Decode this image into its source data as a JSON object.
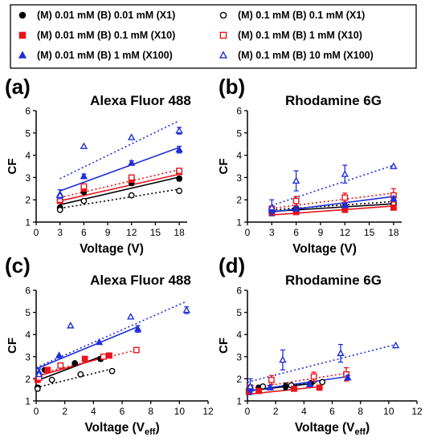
{
  "legend": {
    "entries": [
      {
        "text": "(M) 0.01 mM  (B) 0.01 mM  (X1)",
        "color": "#000000",
        "marker": "circle",
        "filled": true
      },
      {
        "text": "(M) 0.1 mM  (B) 0.1 mM  (X1)",
        "color": "#000000",
        "marker": "circle",
        "filled": false
      },
      {
        "text": "(M) 0.01 mM  (B) 0.1 mM  (X10)",
        "color": "#e8141c",
        "marker": "square",
        "filled": true
      },
      {
        "text": "(M) 0.1 mM  (B) 1 mM     (X10)",
        "color": "#e8141c",
        "marker": "square",
        "filled": false
      },
      {
        "text": "(M) 0.01 mM  (B) 1 mM     (X100)",
        "color": "#1f2fd8",
        "marker": "triangle",
        "filled": true
      },
      {
        "text": "(M) 0.1 mM  (B) 10 mM  (X100)",
        "color": "#1f2fd8",
        "marker": "triangle",
        "filled": false
      }
    ]
  },
  "chart_data": [
    {
      "type": "scatter",
      "panel_label": "(a)",
      "title": "Alexa Fluor 488",
      "xlabel": "Voltage (V)",
      "ylabel": "CF",
      "xlim": [
        0,
        19
      ],
      "ylim": [
        1,
        6
      ],
      "xticks": [
        0,
        3,
        6,
        9,
        12,
        15,
        18
      ],
      "yticks": [
        1,
        2,
        3,
        4,
        5,
        6
      ],
      "series": [
        {
          "x": [
            3,
            6,
            12,
            18
          ],
          "y": [
            1.65,
            2.35,
            2.75,
            2.95
          ],
          "err": [
            0.05,
            0.08,
            0.1,
            0.1
          ],
          "fit": [
            [
              3,
              1.78
            ],
            [
              18,
              3.02
            ]
          ],
          "color": "#000000",
          "marker": "circle",
          "filled": true,
          "dotted": false
        },
        {
          "x": [
            3,
            6,
            12,
            18
          ],
          "y": [
            1.55,
            1.95,
            2.2,
            2.4
          ],
          "err": [
            0.05,
            0.05,
            0.05,
            0.05
          ],
          "fit": [
            [
              3,
              1.62
            ],
            [
              18,
              2.48
            ]
          ],
          "color": "#000000",
          "marker": "circle",
          "filled": false,
          "dotted": true
        },
        {
          "x": [
            3,
            6,
            12,
            18
          ],
          "y": [
            1.95,
            2.5,
            2.9,
            3.25
          ],
          "err": [
            0.05,
            0.08,
            0.1,
            0.1
          ],
          "fit": [
            [
              3,
              1.95
            ],
            [
              18,
              3.15
            ]
          ],
          "color": "#e8141c",
          "marker": "square",
          "filled": true,
          "dotted": false
        },
        {
          "x": [
            3,
            6,
            12,
            18
          ],
          "y": [
            2.0,
            2.6,
            3.0,
            3.3
          ],
          "err": [
            0.05,
            0.05,
            0.05,
            0.05
          ],
          "fit": [
            [
              3,
              2.1
            ],
            [
              18,
              3.35
            ]
          ],
          "color": "#e8141c",
          "marker": "square",
          "filled": false,
          "dotted": true
        },
        {
          "x": [
            3,
            6,
            12,
            18
          ],
          "y": [
            2.25,
            3.05,
            3.65,
            4.25
          ],
          "err": [
            0.2,
            0.1,
            0.1,
            0.15
          ],
          "fit": [
            [
              3,
              2.4
            ],
            [
              18,
              4.35
            ]
          ],
          "color": "#1f2fd8",
          "marker": "triangle",
          "filled": true,
          "dotted": false
        },
        {
          "x": [
            3,
            6,
            12,
            18
          ],
          "y": [
            2.2,
            4.4,
            4.8,
            5.1
          ],
          "err": [
            0.05,
            0.05,
            0.05,
            0.15
          ],
          "fit": [
            [
              3,
              2.95
            ],
            [
              18,
              5.55
            ]
          ],
          "color": "#1f2fd8",
          "marker": "triangle",
          "filled": false,
          "dotted": true
        }
      ]
    },
    {
      "type": "scatter",
      "panel_label": "(b)",
      "title": "Rhodamine 6G",
      "xlabel": "Voltage (V)",
      "ylabel": "CF",
      "xlim": [
        0,
        19
      ],
      "ylim": [
        1,
        6
      ],
      "xticks": [
        0,
        3,
        6,
        9,
        12,
        15,
        18
      ],
      "yticks": [
        1,
        2,
        3,
        4,
        5,
        6
      ],
      "series": [
        {
          "x": [
            3,
            6,
            12,
            18
          ],
          "y": [
            1.5,
            1.6,
            1.65,
            1.8
          ],
          "err": [
            0.15,
            0.1,
            0.15,
            0.15
          ],
          "fit": [
            [
              3,
              1.48
            ],
            [
              18,
              1.82
            ]
          ],
          "color": "#000000",
          "marker": "circle",
          "filled": true,
          "dotted": false
        },
        {
          "x": [
            3,
            6,
            12,
            18
          ],
          "y": [
            1.5,
            1.6,
            1.7,
            1.85
          ],
          "err": [
            0.05,
            0.05,
            0.05,
            0.05
          ],
          "fit": [
            [
              3,
              1.55
            ],
            [
              18,
              1.92
            ]
          ],
          "color": "#000000",
          "marker": "circle",
          "filled": false,
          "dotted": true
        },
        {
          "x": [
            3,
            6,
            12,
            18
          ],
          "y": [
            1.4,
            1.45,
            1.55,
            1.65
          ],
          "err": [
            0.1,
            0.1,
            0.1,
            0.1
          ],
          "fit": [
            [
              3,
              1.32
            ],
            [
              18,
              1.72
            ]
          ],
          "color": "#e8141c",
          "marker": "square",
          "filled": true,
          "dotted": false
        },
        {
          "x": [
            3,
            6,
            12,
            18
          ],
          "y": [
            1.6,
            1.95,
            2.1,
            2.2
          ],
          "err": [
            0.1,
            0.2,
            0.2,
            0.3
          ],
          "fit": [
            [
              3,
              1.62
            ],
            [
              18,
              2.3
            ]
          ],
          "color": "#e8141c",
          "marker": "square",
          "filled": false,
          "dotted": true
        },
        {
          "x": [
            3,
            6,
            12,
            18
          ],
          "y": [
            1.55,
            1.6,
            1.75,
            2.05
          ],
          "err": [
            0.15,
            0.1,
            0.1,
            0.1
          ],
          "fit": [
            [
              3,
              1.45
            ],
            [
              18,
              2.15
            ]
          ],
          "color": "#1f2fd8",
          "marker": "triangle",
          "filled": true,
          "dotted": false
        },
        {
          "x": [
            3,
            6,
            12,
            18
          ],
          "y": [
            1.65,
            2.85,
            3.15,
            3.5
          ],
          "err": [
            0.35,
            0.45,
            0.4,
            0.05
          ],
          "fit": [
            [
              3,
              1.75
            ],
            [
              18,
              3.55
            ]
          ],
          "color": "#1f2fd8",
          "marker": "triangle",
          "filled": false,
          "dotted": true
        }
      ]
    },
    {
      "type": "scatter",
      "panel_label": "(c)",
      "title": "Alexa Fluor 488",
      "xlabel": "Voltage (V",
      "xlabel_sub": "eff",
      "xlabel_end": ")",
      "ylabel": "CF",
      "xlim": [
        0,
        12
      ],
      "ylim": [
        1,
        6
      ],
      "xticks": [
        0,
        2,
        4,
        6,
        8,
        10,
        12
      ],
      "yticks": [
        1,
        2,
        3,
        4,
        5,
        6
      ],
      "series": [
        {
          "x": [
            0.1,
            0.6,
            2.7,
            4.5
          ],
          "y": [
            1.6,
            2.4,
            2.7,
            2.9
          ],
          "err": [
            0.1,
            0.05,
            0.05,
            0.1
          ],
          "fit": [
            [
              0,
              1.9
            ],
            [
              4.7,
              3.05
            ]
          ],
          "color": "#000000",
          "marker": "circle",
          "filled": true,
          "dotted": false
        },
        {
          "x": [
            0.1,
            1.1,
            3.1,
            5.3
          ],
          "y": [
            1.55,
            1.95,
            2.2,
            2.35
          ],
          "err": [
            0.05,
            0.05,
            0.05,
            0.05
          ],
          "fit": [
            [
              0,
              1.6
            ],
            [
              5.3,
              2.45
            ]
          ],
          "color": "#000000",
          "marker": "circle",
          "filled": false,
          "dotted": true
        },
        {
          "x": [
            0.1,
            0.8,
            3.4,
            5.1
          ],
          "y": [
            1.95,
            2.4,
            2.9,
            3.05
          ],
          "err": [
            0.05,
            0.05,
            0.05,
            0.05
          ],
          "fit": [
            [
              0,
              2.1
            ],
            [
              5.2,
              3.05
            ]
          ],
          "color": "#e8141c",
          "marker": "square",
          "filled": true,
          "dotted": false
        },
        {
          "x": [
            0.2,
            1.7,
            4.7,
            7.0
          ],
          "y": [
            2.05,
            2.6,
            3.0,
            3.3
          ],
          "err": [
            0.05,
            0.05,
            0.05,
            0.05
          ],
          "fit": [
            [
              0,
              2.2
            ],
            [
              7.0,
              3.3
            ]
          ],
          "color": "#e8141c",
          "marker": "square",
          "filled": false,
          "dotted": true
        },
        {
          "x": [
            0.2,
            1.6,
            4.4,
            7.1
          ],
          "y": [
            2.3,
            3.05,
            3.65,
            4.25
          ],
          "err": [
            0.15,
            0.05,
            0.05,
            0.15
          ],
          "fit": [
            [
              0,
              2.45
            ],
            [
              7.1,
              4.35
            ]
          ],
          "color": "#1f2fd8",
          "marker": "triangle",
          "filled": true,
          "dotted": false
        },
        {
          "x": [
            0.2,
            2.4,
            6.6,
            10.5
          ],
          "y": [
            2.2,
            4.4,
            4.8,
            5.1
          ],
          "err": [
            0.05,
            0.05,
            0.05,
            0.15
          ],
          "fit": [
            [
              0,
              2.5
            ],
            [
              10.5,
              5.5
            ]
          ],
          "color": "#1f2fd8",
          "marker": "triangle",
          "filled": false,
          "dotted": true
        }
      ]
    },
    {
      "type": "scatter",
      "panel_label": "(d)",
      "title": "Rhodamine 6G",
      "xlabel": "Voltage (V",
      "xlabel_sub": "eff",
      "xlabel_end": ")",
      "ylabel": "CF",
      "xlim": [
        0,
        12
      ],
      "ylim": [
        1,
        6
      ],
      "xticks": [
        0,
        2,
        4,
        6,
        8,
        10,
        12
      ],
      "yticks": [
        1,
        2,
        3,
        4,
        5,
        6
      ],
      "series": [
        {
          "x": [
            0.1,
            0.8,
            2.7,
            4.5
          ],
          "y": [
            1.5,
            1.6,
            1.65,
            1.8
          ],
          "err": [
            0.15,
            0.1,
            0.15,
            0.1
          ],
          "fit": [
            [
              0,
              1.45
            ],
            [
              4.8,
              1.8
            ]
          ],
          "color": "#000000",
          "marker": "circle",
          "filled": true,
          "dotted": false
        },
        {
          "x": [
            0.1,
            1.1,
            3.1,
            5.3
          ],
          "y": [
            1.5,
            1.65,
            1.7,
            1.85
          ],
          "err": [
            0.05,
            0.05,
            0.05,
            0.05
          ],
          "fit": [
            [
              0,
              1.45
            ],
            [
              5.4,
              1.9
            ]
          ],
          "color": "#000000",
          "marker": "circle",
          "filled": false,
          "dotted": true
        },
        {
          "x": [
            0.1,
            0.8,
            3.3,
            5.1
          ],
          "y": [
            1.4,
            1.45,
            1.55,
            1.6
          ],
          "err": [
            0.1,
            0.1,
            0.1,
            0.1
          ],
          "fit": [
            [
              0,
              1.3
            ],
            [
              5.2,
              1.65
            ]
          ],
          "color": "#e8141c",
          "marker": "square",
          "filled": true,
          "dotted": false
        },
        {
          "x": [
            0.2,
            1.7,
            4.7,
            7.0
          ],
          "y": [
            1.6,
            1.95,
            2.1,
            2.2
          ],
          "err": [
            0.1,
            0.2,
            0.2,
            0.3
          ],
          "fit": [
            [
              0,
              1.55
            ],
            [
              7.0,
              2.25
            ]
          ],
          "color": "#e8141c",
          "marker": "square",
          "filled": false,
          "dotted": true
        },
        {
          "x": [
            0.2,
            1.6,
            4.4,
            7.1
          ],
          "y": [
            1.55,
            1.6,
            1.75,
            2.05
          ],
          "err": [
            0.15,
            0.1,
            0.1,
            0.1
          ],
          "fit": [
            [
              0,
              1.45
            ],
            [
              7.1,
              2.1
            ]
          ],
          "color": "#1f2fd8",
          "marker": "triangle",
          "filled": true,
          "dotted": false
        },
        {
          "x": [
            0.2,
            2.5,
            6.6,
            10.5
          ],
          "y": [
            1.65,
            2.85,
            3.15,
            3.5
          ],
          "err": [
            0.35,
            0.45,
            0.4,
            0.05
          ],
          "fit": [
            [
              0,
              1.85
            ],
            [
              10.5,
              3.55
            ]
          ],
          "color": "#1f2fd8",
          "marker": "triangle",
          "filled": false,
          "dotted": true
        }
      ]
    }
  ]
}
